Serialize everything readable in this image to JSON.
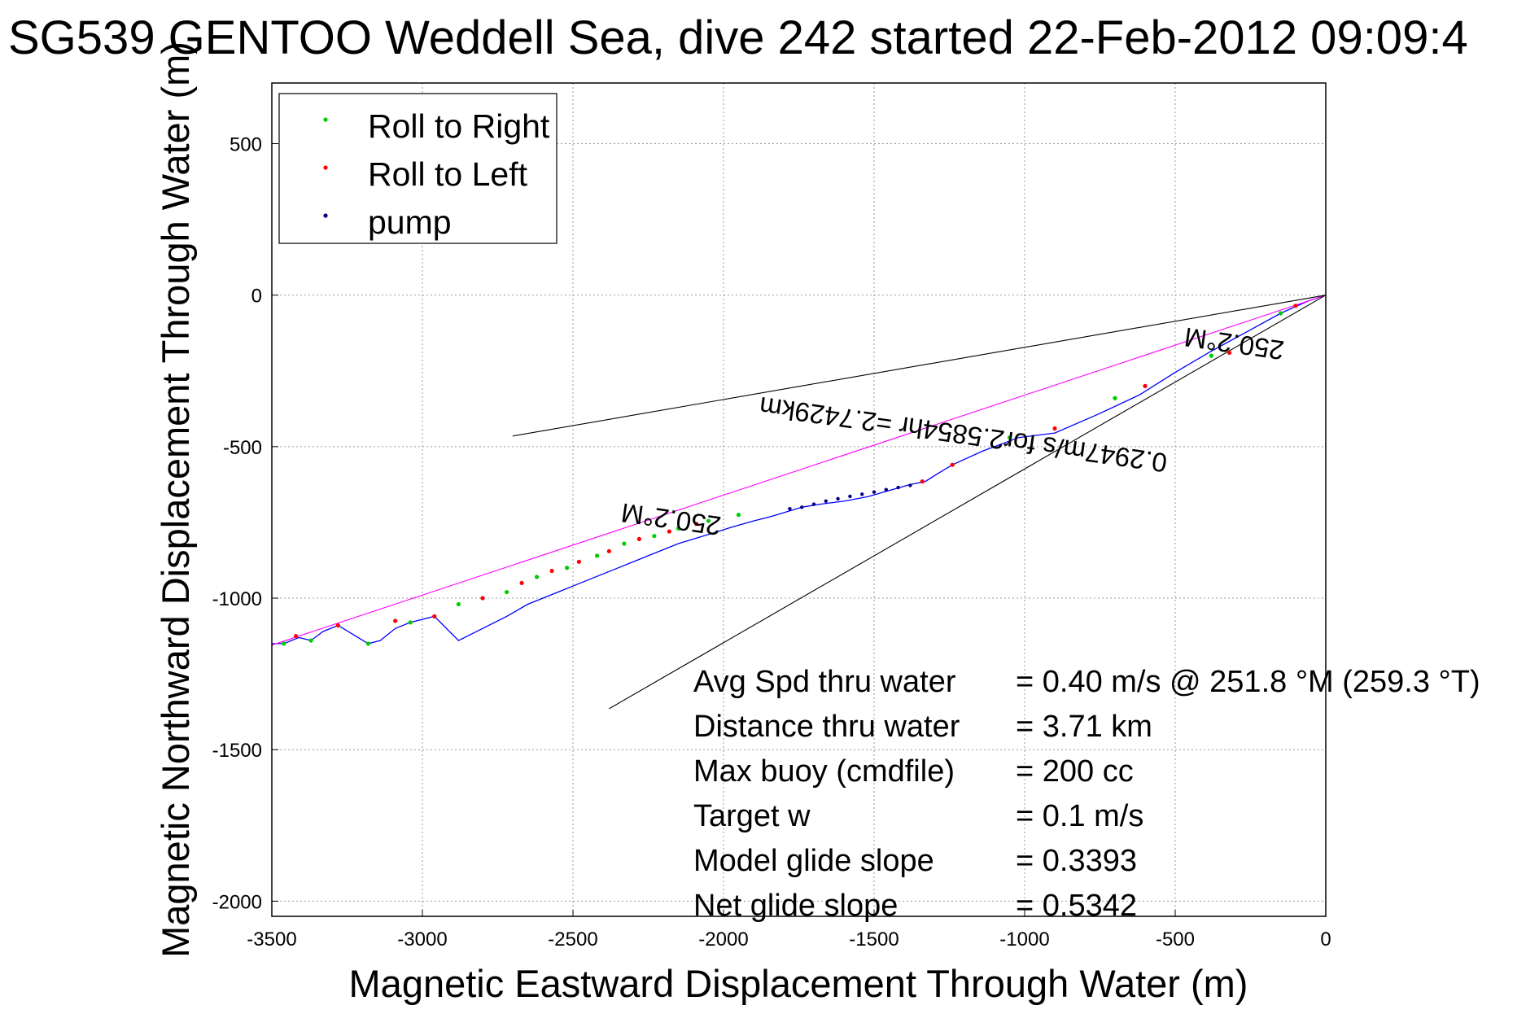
{
  "chart_data": {
    "type": "line",
    "title": "SG539 GENTOO Weddell Sea, dive 242 started 22-Feb-2012 09:09:4",
    "xlabel": "Magnetic Eastward Displacement Through Water (m)",
    "ylabel": "Magnetic Northward Displacement Through Water (m)",
    "xlim": [
      -3500,
      0
    ],
    "ylim": [
      -2050,
      700
    ],
    "xticks": [
      -3500,
      -3000,
      -2500,
      -2000,
      -1500,
      -1000,
      -500,
      0
    ],
    "yticks": [
      500,
      0,
      -500,
      -1000,
      -1500,
      -2000
    ],
    "grid": true,
    "legend_position": "top-left",
    "legend": [
      {
        "label": "Roll to Right",
        "color": "#00cc00"
      },
      {
        "label": "Roll to Left",
        "color": "#ff0000"
      },
      {
        "label": "pump",
        "color": "#000080"
      }
    ],
    "series": [
      {
        "role": "track",
        "color": "#0000ff",
        "x": [
          0,
          -60,
          -150,
          -260,
          -380,
          -500,
          -620,
          -760,
          -900,
          -1020,
          -1140,
          -1240,
          -1290,
          -1330,
          -1380,
          -1450,
          -1520,
          -1600,
          -1680,
          -1740,
          -1790,
          -1840,
          -1900,
          -1970,
          -2050,
          -2150,
          -2250,
          -2350,
          -2450,
          -2550,
          -2650,
          -2720,
          -2800,
          -2880,
          -2960,
          -3040,
          -3090,
          -3140,
          -3180,
          -3230,
          -3280,
          -3330,
          -3370,
          -3410,
          -3460,
          -3500
        ],
        "y": [
          0,
          -20,
          -60,
          -120,
          -185,
          -255,
          -330,
          -395,
          -455,
          -470,
          -515,
          -560,
          -590,
          -615,
          -625,
          -645,
          -665,
          -680,
          -690,
          -700,
          -715,
          -730,
          -745,
          -765,
          -790,
          -820,
          -860,
          -900,
          -940,
          -980,
          -1020,
          -1060,
          -1100,
          -1140,
          -1060,
          -1080,
          -1100,
          -1140,
          -1150,
          -1120,
          -1090,
          -1110,
          -1140,
          -1130,
          -1150,
          -1150
        ]
      },
      {
        "role": "heading",
        "color": "#ff00ff",
        "x": [
          0,
          -3500
        ],
        "y": [
          0,
          -1155
        ]
      },
      {
        "role": "pump",
        "color": "#000080",
        "x": [
          -1780,
          -1740,
          -1700,
          -1660,
          -1620,
          -1580,
          -1540,
          -1500,
          -1460,
          -1420,
          -1380
        ],
        "y": [
          -705,
          -700,
          -690,
          -680,
          -672,
          -664,
          -657,
          -650,
          -642,
          -635,
          -628
        ]
      },
      {
        "role": "roll-right",
        "color": "#00cc00",
        "x": [
          -3460,
          -3370,
          -3180,
          -3040,
          -2880,
          -2720,
          -2620,
          -2520,
          -2420,
          -2330,
          -2230,
          -2150,
          -2050,
          -1950,
          -1050,
          -700,
          -380,
          -150
        ],
        "y": [
          -1150,
          -1140,
          -1150,
          -1080,
          -1020,
          -980,
          -930,
          -900,
          -860,
          -820,
          -795,
          -770,
          -745,
          -725,
          -470,
          -340,
          -200,
          -60
        ]
      },
      {
        "role": "roll-left",
        "color": "#ff0000",
        "x": [
          -3420,
          -3280,
          -3090,
          -2960,
          -2800,
          -2670,
          -2570,
          -2480,
          -2380,
          -2280,
          -2180,
          -2090,
          -1340,
          -1240,
          -900,
          -600,
          -320,
          -100
        ],
        "y": [
          -1125,
          -1090,
          -1075,
          -1060,
          -1000,
          -950,
          -910,
          -880,
          -845,
          -805,
          -780,
          -755,
          -615,
          -560,
          -440,
          -300,
          -190,
          -35
        ]
      },
      {
        "role": "current-upper",
        "color": "#000000",
        "x": [
          0,
          -2700
        ],
        "y": [
          0,
          -465
        ]
      },
      {
        "role": "current-lower",
        "color": "#000000",
        "x": [
          0,
          -2380
        ],
        "y": [
          0,
          -1365
        ]
      }
    ],
    "annotations": [
      {
        "text": "250.2°M",
        "x": -300,
        "y": -130,
        "rotation": 188
      },
      {
        "text": "0.2947m/s for2.5854hr =2.7429km",
        "x": -1200,
        "y": -430,
        "rotation": 188
      },
      {
        "text": "250.2°M",
        "x": -2170,
        "y": -710,
        "rotation": 188
      }
    ],
    "stats": [
      {
        "label": "Avg Spd thru water",
        "value": "=  0.40 m/s @ 251.8 °M (259.3 °T)"
      },
      {
        "label": "Distance thru water",
        "value": "=  3.71 km"
      },
      {
        "label": "Max buoy (cmdfile)",
        "value": "= 200 cc"
      },
      {
        "label": "Target w",
        "value": "= 0.1 m/s"
      },
      {
        "label": "Model glide slope",
        "value": "= 0.3393"
      },
      {
        "label": "Net glide slope",
        "value": "= 0.5342"
      }
    ]
  }
}
